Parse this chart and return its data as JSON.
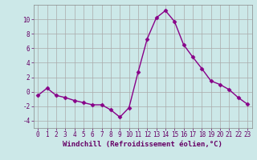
{
  "x": [
    0,
    1,
    2,
    3,
    4,
    5,
    6,
    7,
    8,
    9,
    10,
    11,
    12,
    13,
    14,
    15,
    16,
    17,
    18,
    19,
    20,
    21,
    22,
    23
  ],
  "y": [
    -0.5,
    0.5,
    -0.5,
    -0.8,
    -1.2,
    -1.5,
    -1.8,
    -1.8,
    -2.5,
    -3.5,
    -2.2,
    2.7,
    7.3,
    10.2,
    11.2,
    9.7,
    6.5,
    4.8,
    3.2,
    1.5,
    1.0,
    0.3,
    -0.8,
    -1.7
  ],
  "line_color": "#880088",
  "marker": "D",
  "marker_size": 2.5,
  "xlabel": "Windchill (Refroidissement éolien,°C)",
  "xlim": [
    -0.5,
    23.5
  ],
  "ylim": [
    -5,
    12
  ],
  "yticks": [
    -4,
    -2,
    0,
    2,
    4,
    6,
    8,
    10
  ],
  "xticks": [
    0,
    1,
    2,
    3,
    4,
    5,
    6,
    7,
    8,
    9,
    10,
    11,
    12,
    13,
    14,
    15,
    16,
    17,
    18,
    19,
    20,
    21,
    22,
    23
  ],
  "bg_color": "#cce8e8",
  "grid_color": "#aaaaaa",
  "tick_label_fontsize": 5.5,
  "xlabel_fontsize": 6.5,
  "line_width": 1.0
}
